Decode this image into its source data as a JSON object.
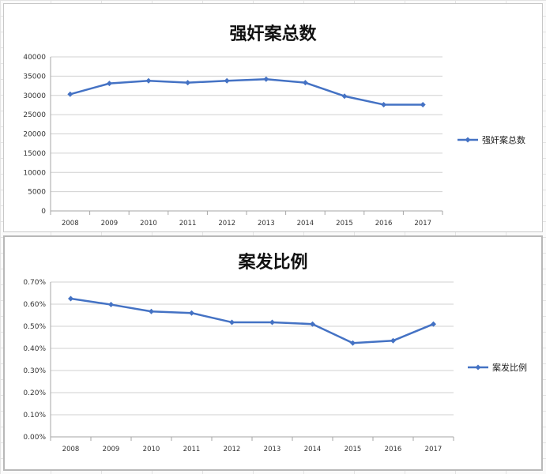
{
  "colors": {
    "series": "#4472c4",
    "grid": "#d0d0d0",
    "axis": "#a6a6a6"
  },
  "chart_data": [
    {
      "type": "line",
      "title": "强奸案总数",
      "categories": [
        "2008",
        "2009",
        "2010",
        "2011",
        "2012",
        "2013",
        "2014",
        "2015",
        "2016",
        "2017"
      ],
      "series": [
        {
          "name": "强奸案总数",
          "values": [
            30300,
            33100,
            33800,
            33300,
            33800,
            34200,
            33300,
            29800,
            27600,
            27600
          ]
        }
      ],
      "yticks": [
        "0",
        "5000",
        "10000",
        "15000",
        "20000",
        "25000",
        "30000",
        "35000",
        "40000"
      ],
      "ylim": [
        0,
        40000
      ],
      "grid": true,
      "legend": "right"
    },
    {
      "type": "line",
      "title": "案发比例",
      "categories": [
        "2008",
        "2009",
        "2010",
        "2011",
        "2012",
        "2013",
        "2014",
        "2015",
        "2016",
        "2017"
      ],
      "series": [
        {
          "name": "案发比例",
          "values": [
            0.625,
            0.598,
            0.567,
            0.56,
            0.518,
            0.518,
            0.51,
            0.424,
            0.435,
            0.51
          ]
        }
      ],
      "yticks": [
        "0.00%",
        "0.10%",
        "0.20%",
        "0.30%",
        "0.40%",
        "0.50%",
        "0.60%",
        "0.70%"
      ],
      "ylim": [
        0,
        0.7
      ],
      "grid": true,
      "legend": "right"
    }
  ]
}
